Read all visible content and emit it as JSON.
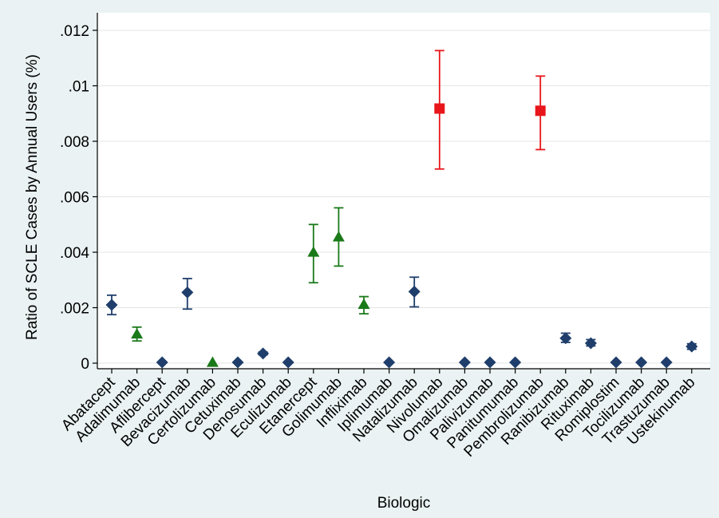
{
  "chart_data": {
    "type": "scatter",
    "title": "",
    "xlabel": "Biologic",
    "ylabel": "Ratio of SCLE Cases by Annual Users (%)",
    "ylim": [
      0,
      0.012
    ],
    "y_ticks": [
      0,
      0.002,
      0.004,
      0.006,
      0.008,
      0.01,
      0.012
    ],
    "y_tick_labels": [
      "0",
      ".002",
      ".004",
      ".006",
      ".008",
      ".01",
      ".012"
    ],
    "grid": true,
    "legend": "none",
    "categories": [
      "Abatacept",
      "Adalimumab",
      "Aflibercept",
      "Bevacizumab",
      "Certolizumab",
      "Cetuximab",
      "Denosumab",
      "Eculizumab",
      "Etanercept",
      "Golimumab",
      "Infliximab",
      "Iplimumab",
      "Natalizumab",
      "Nivolumab",
      "Omalizumab",
      "Palivizumab",
      "Panitumumab",
      "Pembrolizumab",
      "Ranibizumab",
      "Rituximab",
      "Romiplostim",
      "Tocilizumab",
      "Trastuzumab",
      "Ustekinumab"
    ],
    "points": [
      {
        "category": "Abatacept",
        "y": 0.0021,
        "low": 0.00175,
        "high": 0.00245,
        "marker": "diamond",
        "color": "#1f3e6b"
      },
      {
        "category": "Adalimumab",
        "y": 0.00105,
        "low": 0.0008,
        "high": 0.0013,
        "marker": "triangle",
        "color": "#1a7a1a"
      },
      {
        "category": "Aflibercept",
        "y": 3e-05,
        "low": null,
        "high": null,
        "marker": "diamond",
        "color": "#1f3e6b"
      },
      {
        "category": "Bevacizumab",
        "y": 0.00255,
        "low": 0.00195,
        "high": 0.00305,
        "marker": "diamond",
        "color": "#1f3e6b"
      },
      {
        "category": "Certolizumab",
        "y": 3e-05,
        "low": null,
        "high": null,
        "marker": "triangle",
        "color": "#1a7a1a"
      },
      {
        "category": "Cetuximab",
        "y": 3e-05,
        "low": null,
        "high": null,
        "marker": "diamond",
        "color": "#1f3e6b"
      },
      {
        "category": "Denosumab",
        "y": 0.00035,
        "low": 0.0003,
        "high": 0.0004,
        "marker": "diamond",
        "color": "#1f3e6b"
      },
      {
        "category": "Eculizumab",
        "y": 3e-05,
        "low": null,
        "high": null,
        "marker": "diamond",
        "color": "#1f3e6b"
      },
      {
        "category": "Etanercept",
        "y": 0.004,
        "low": 0.0029,
        "high": 0.005,
        "marker": "triangle",
        "color": "#1a7a1a"
      },
      {
        "category": "Golimumab",
        "y": 0.00455,
        "low": 0.0035,
        "high": 0.0056,
        "marker": "triangle",
        "color": "#1a7a1a"
      },
      {
        "category": "Infliximab",
        "y": 0.00212,
        "low": 0.00178,
        "high": 0.0024,
        "marker": "triangle",
        "color": "#1a7a1a"
      },
      {
        "category": "Iplimumab",
        "y": 3e-05,
        "low": null,
        "high": null,
        "marker": "diamond",
        "color": "#1f3e6b"
      },
      {
        "category": "Natalizumab",
        "y": 0.00258,
        "low": 0.00203,
        "high": 0.0031,
        "marker": "diamond",
        "color": "#1f3e6b"
      },
      {
        "category": "Nivolumab",
        "y": 0.00918,
        "low": 0.007,
        "high": 0.01127,
        "marker": "square",
        "color": "#e8161b"
      },
      {
        "category": "Omalizumab",
        "y": 3e-05,
        "low": null,
        "high": null,
        "marker": "diamond",
        "color": "#1f3e6b"
      },
      {
        "category": "Palivizumab",
        "y": 3e-05,
        "low": null,
        "high": null,
        "marker": "diamond",
        "color": "#1f3e6b"
      },
      {
        "category": "Panitumumab",
        "y": 3e-05,
        "low": null,
        "high": null,
        "marker": "diamond",
        "color": "#1f3e6b"
      },
      {
        "category": "Pembrolizumab",
        "y": 0.0091,
        "low": 0.0077,
        "high": 0.01035,
        "marker": "square",
        "color": "#e8161b"
      },
      {
        "category": "Ranibizumab",
        "y": 0.0009,
        "low": 0.00075,
        "high": 0.00108,
        "marker": "diamond",
        "color": "#1f3e6b"
      },
      {
        "category": "Rituximab",
        "y": 0.00072,
        "low": 0.00062,
        "high": 0.00085,
        "marker": "diamond",
        "color": "#1f3e6b"
      },
      {
        "category": "Romiplostim",
        "y": 3e-05,
        "low": null,
        "high": null,
        "marker": "diamond",
        "color": "#1f3e6b"
      },
      {
        "category": "Tocilizumab",
        "y": 3e-05,
        "low": null,
        "high": null,
        "marker": "diamond",
        "color": "#1f3e6b"
      },
      {
        "category": "Trastuzumab",
        "y": 3e-05,
        "low": null,
        "high": null,
        "marker": "diamond",
        "color": "#1f3e6b"
      },
      {
        "category": "Ustekinumab",
        "y": 0.0006,
        "low": 0.0005,
        "high": 0.0007,
        "marker": "diamond",
        "color": "#1f3e6b"
      }
    ]
  }
}
